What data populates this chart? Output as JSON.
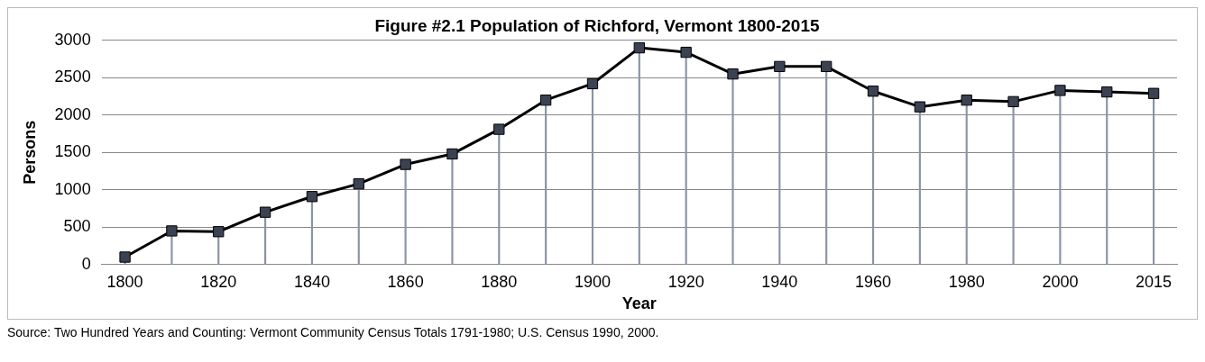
{
  "chart_data": {
    "type": "line",
    "title": "Figure #2.1 Population of Richford, Vermont 1800-2015",
    "xlabel": "Year",
    "ylabel": "Persons",
    "categories": [
      "1800",
      null,
      "1820",
      null,
      "1840",
      null,
      "1860",
      null,
      "1880",
      null,
      "1900",
      null,
      "1920",
      null,
      "1940",
      null,
      "1960",
      null,
      "1980",
      null,
      "2000",
      null,
      "2015"
    ],
    "series": [
      {
        "color": "#000000",
        "marker": "none",
        "values": [
          100,
          450,
          440,
          700,
          910,
          1080,
          1340,
          1480,
          1810,
          2200,
          2420,
          2900,
          2840,
          2550,
          2650,
          2650,
          2320,
          2110,
          2200,
          2180,
          2330,
          2310,
          2290
        ]
      },
      {
        "type": "lollipop",
        "color": "#3b4252",
        "values": [
          100,
          450,
          440,
          700,
          910,
          1080,
          1340,
          1480,
          1810,
          2200,
          2420,
          2900,
          2840,
          2550,
          2650,
          2650,
          2320,
          2110,
          2200,
          2180,
          2330,
          2310,
          2290
        ]
      }
    ],
    "ylim": [
      0,
      3000
    ],
    "yticks": [
      0,
      500,
      1000,
      1500,
      2000,
      2500,
      3000
    ],
    "grid": "y",
    "legend": false,
    "marker": "square",
    "line_style": "solid",
    "annotations": [
      "Source: Two Hundred Years and Counting: Vermont Community Census Totals 1791-1980; U.S. Census 1990, 2000."
    ]
  }
}
